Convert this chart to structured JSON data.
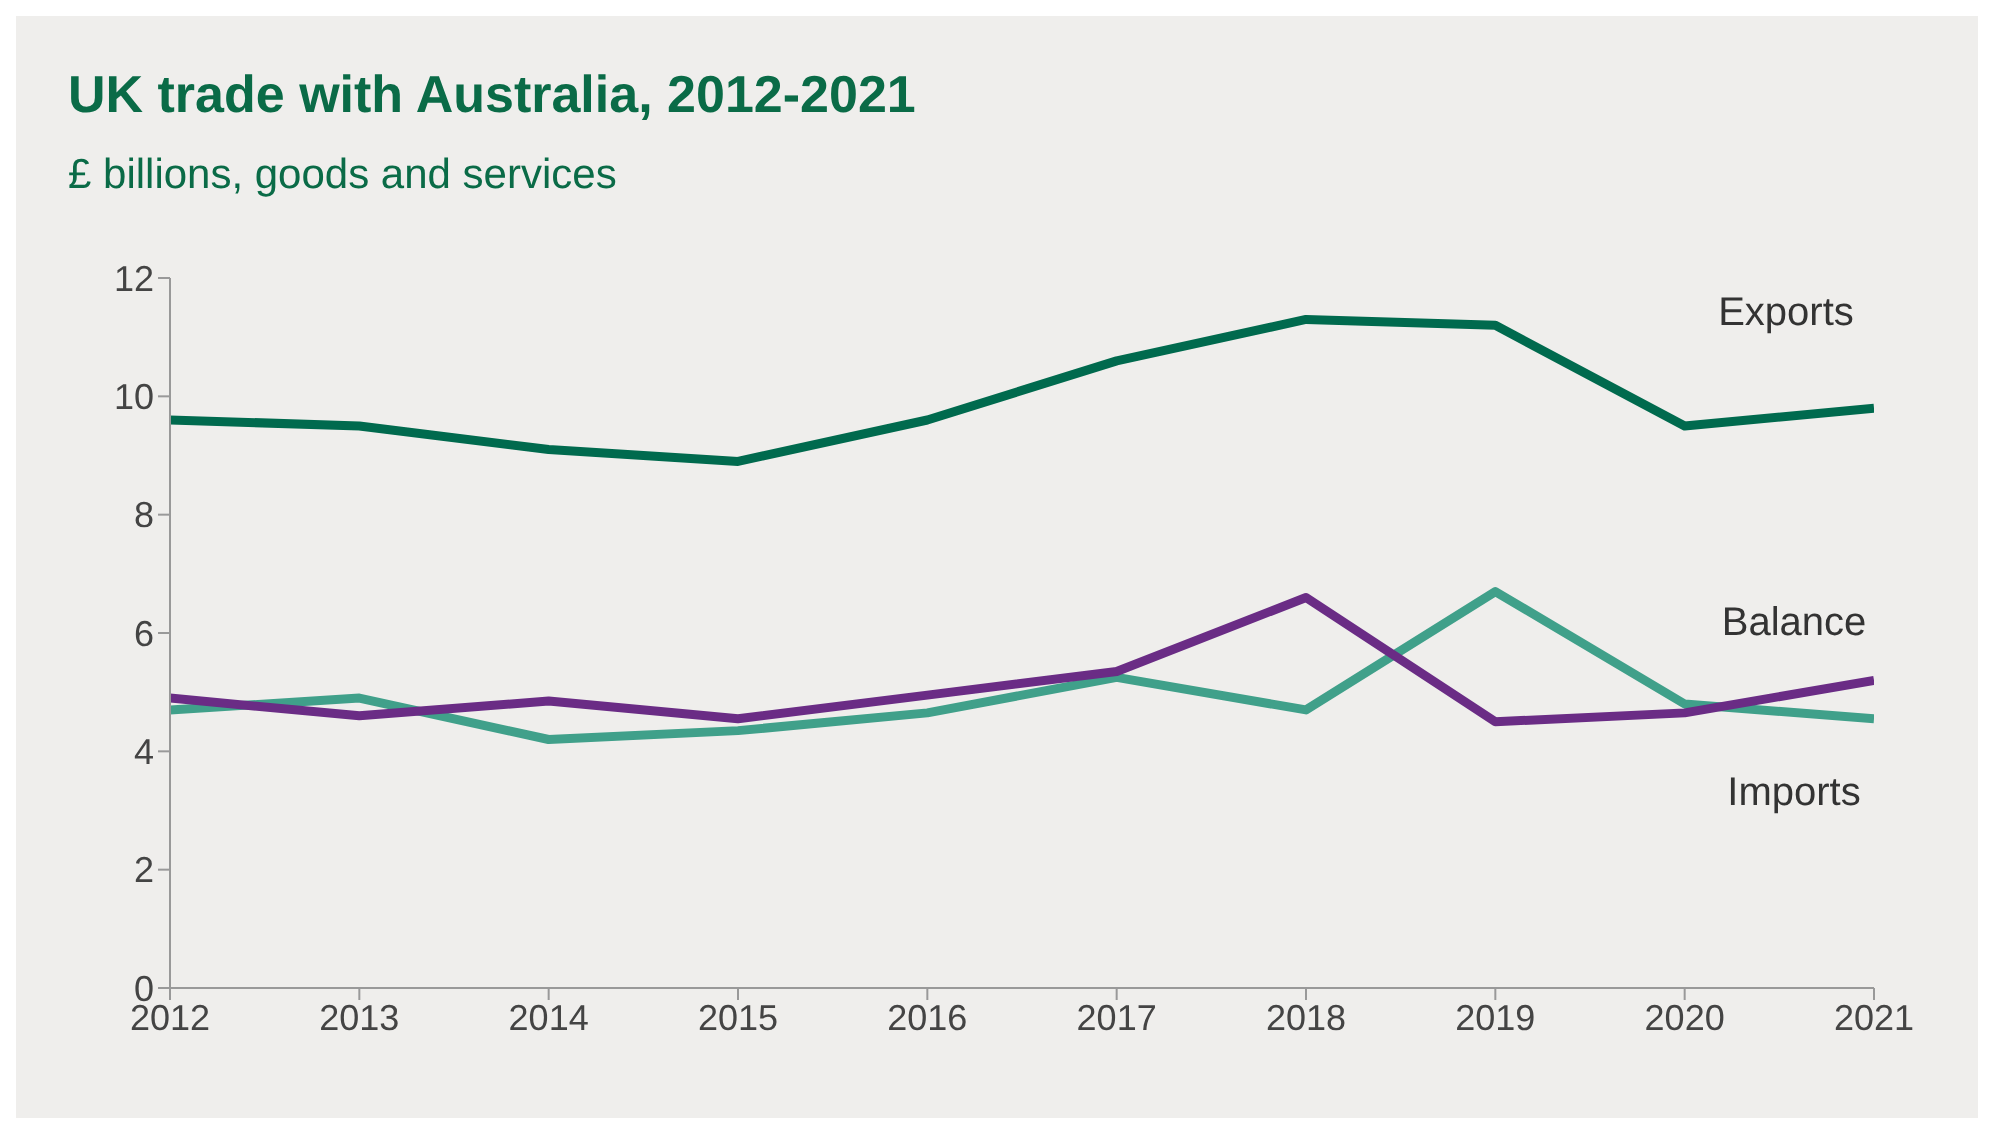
{
  "chart_data": {
    "type": "line",
    "title": "UK trade with Australia, 2012-2021",
    "subtitle": "£ billions, goods and services",
    "x": [
      2012,
      2013,
      2014,
      2015,
      2016,
      2017,
      2018,
      2019,
      2020,
      2021
    ],
    "series": [
      {
        "name": "Exports",
        "color": "#006a4e",
        "values": [
          9.6,
          9.5,
          9.1,
          8.9,
          9.6,
          10.6,
          11.3,
          11.2,
          9.5,
          9.8
        ]
      },
      {
        "name": "Imports",
        "color": "#40a08a",
        "values": [
          4.7,
          4.9,
          4.2,
          4.35,
          4.65,
          5.25,
          4.7,
          6.7,
          4.8,
          4.55
        ]
      },
      {
        "name": "Balance",
        "color": "#6a2c85",
        "values": [
          4.9,
          4.6,
          4.85,
          4.55,
          4.95,
          5.35,
          6.6,
          4.5,
          4.65,
          5.2
        ]
      }
    ],
    "xlim": [
      2012,
      2021
    ],
    "xticks": [
      2012,
      2013,
      2014,
      2015,
      2016,
      2017,
      2018,
      2019,
      2020,
      2021
    ],
    "ylim": [
      0,
      12
    ],
    "yticks": [
      0,
      2,
      4,
      6,
      8,
      10,
      12
    ],
    "grid": false,
    "legend": false,
    "marker": "none",
    "line_style": "solid"
  }
}
